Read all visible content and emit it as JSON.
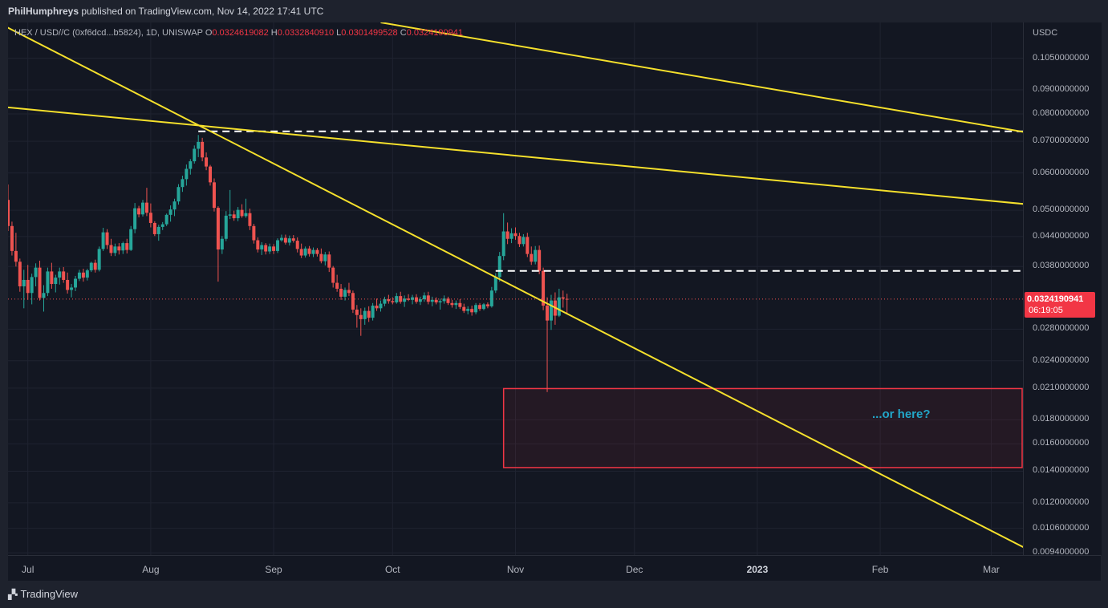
{
  "header": {
    "publisher": "PhilHumphreys",
    "published_text": "published on TradingView.com, Nov 14, 2022 17:41 UTC"
  },
  "legend": {
    "symbol": "HEX / USD//C (0xf6dcd...b5824), 1D, UNISWAP",
    "open_label": "O",
    "open": "0.0324619082",
    "high_label": "H",
    "high": "0.0332840910",
    "low_label": "L",
    "low": "0.0301499528",
    "close_label": "C",
    "close": "0.0324190941"
  },
  "price_axis": {
    "currency": "USDC",
    "ticks": [
      {
        "value": 0.105,
        "label": "0.1050000000"
      },
      {
        "value": 0.09,
        "label": "0.0900000000"
      },
      {
        "value": 0.08,
        "label": "0.0800000000"
      },
      {
        "value": 0.07,
        "label": "0.0700000000"
      },
      {
        "value": 0.06,
        "label": "0.0600000000"
      },
      {
        "value": 0.05,
        "label": "0.0500000000"
      },
      {
        "value": 0.044,
        "label": "0.0440000000"
      },
      {
        "value": 0.038,
        "label": "0.0380000000"
      },
      {
        "value": 0.028,
        "label": "0.0280000000"
      },
      {
        "value": 0.024,
        "label": "0.0240000000"
      },
      {
        "value": 0.021,
        "label": "0.0210000000"
      },
      {
        "value": 0.018,
        "label": "0.0180000000"
      },
      {
        "value": 0.016,
        "label": "0.0160000000"
      },
      {
        "value": 0.014,
        "label": "0.0140000000"
      },
      {
        "value": 0.012,
        "label": "0.0120000000"
      },
      {
        "value": 0.0106,
        "label": "0.0106000000"
      },
      {
        "value": 0.0094,
        "label": "0.0094000000"
      }
    ]
  },
  "time_axis": {
    "ticks": [
      {
        "date": "2022-07-01",
        "label": "Jul",
        "year": false
      },
      {
        "date": "2022-08-01",
        "label": "Aug",
        "year": false
      },
      {
        "date": "2022-09-01",
        "label": "Sep",
        "year": false
      },
      {
        "date": "2022-10-01",
        "label": "Oct",
        "year": false
      },
      {
        "date": "2022-11-01",
        "label": "Nov",
        "year": false
      },
      {
        "date": "2022-12-01",
        "label": "Dec",
        "year": false
      },
      {
        "date": "2023-01-01",
        "label": "2023",
        "year": true
      },
      {
        "date": "2023-02-01",
        "label": "Feb",
        "year": false
      },
      {
        "date": "2023-03-01",
        "label": "Mar",
        "year": false
      }
    ]
  },
  "last_price": {
    "price": "0.0324190941",
    "countdown": "06:19:05"
  },
  "annotation": "...or here?",
  "footer": {
    "brand": "TradingView"
  },
  "colors": {
    "background": "#131722",
    "up": "#26a69a",
    "down": "#ef5350",
    "trendline": "#f5e02c",
    "level": "#ffffff",
    "zone_border": "#f23645",
    "annotation": "#22a6c9"
  },
  "chart_data": {
    "type": "candlestick",
    "scale": "log",
    "x_range": [
      "2022-06-26",
      "2023-03-09"
    ],
    "y_range": [
      0.0093,
      0.125
    ],
    "candles": [
      [
        "2022-06-26",
        0.0526,
        0.0567,
        0.0452,
        0.0463
      ],
      [
        "2022-06-27",
        0.0463,
        0.0473,
        0.0401,
        0.041
      ],
      [
        "2022-06-28",
        0.041,
        0.0448,
        0.038,
        0.0389
      ],
      [
        "2022-06-29",
        0.0389,
        0.0395,
        0.0336,
        0.0345
      ],
      [
        "2022-06-30",
        0.0345,
        0.0374,
        0.031,
        0.0356
      ],
      [
        "2022-07-01",
        0.0356,
        0.0383,
        0.0323,
        0.0334
      ],
      [
        "2022-07-02",
        0.0334,
        0.0367,
        0.0316,
        0.0361
      ],
      [
        "2022-07-03",
        0.0361,
        0.0386,
        0.0345,
        0.0378
      ],
      [
        "2022-07-04",
        0.0378,
        0.0391,
        0.0322,
        0.0326
      ],
      [
        "2022-07-05",
        0.0326,
        0.0347,
        0.0305,
        0.0334
      ],
      [
        "2022-07-06",
        0.0334,
        0.0378,
        0.0329,
        0.0371
      ],
      [
        "2022-07-07",
        0.0371,
        0.0387,
        0.0341,
        0.0349
      ],
      [
        "2022-07-08",
        0.0349,
        0.0365,
        0.0335,
        0.036
      ],
      [
        "2022-07-09",
        0.036,
        0.0378,
        0.0348,
        0.0371
      ],
      [
        "2022-07-10",
        0.0371,
        0.0379,
        0.0351,
        0.0356
      ],
      [
        "2022-07-11",
        0.0356,
        0.0369,
        0.0333,
        0.0339
      ],
      [
        "2022-07-12",
        0.0339,
        0.0349,
        0.0327,
        0.0343
      ],
      [
        "2022-07-13",
        0.0343,
        0.0363,
        0.0337,
        0.0358
      ],
      [
        "2022-07-14",
        0.0358,
        0.0374,
        0.0354,
        0.0369
      ],
      [
        "2022-07-15",
        0.0369,
        0.0376,
        0.0353,
        0.036
      ],
      [
        "2022-07-16",
        0.036,
        0.0376,
        0.0355,
        0.0373
      ],
      [
        "2022-07-17",
        0.0373,
        0.0389,
        0.037,
        0.0387
      ],
      [
        "2022-07-18",
        0.0387,
        0.0393,
        0.0369,
        0.0374
      ],
      [
        "2022-07-19",
        0.0374,
        0.0419,
        0.0371,
        0.0414
      ],
      [
        "2022-07-20",
        0.0414,
        0.0459,
        0.041,
        0.0449
      ],
      [
        "2022-07-21",
        0.0449,
        0.0456,
        0.0414,
        0.0422
      ],
      [
        "2022-07-22",
        0.0422,
        0.0435,
        0.04,
        0.0406
      ],
      [
        "2022-07-23",
        0.0406,
        0.0425,
        0.04,
        0.0419
      ],
      [
        "2022-07-24",
        0.0419,
        0.0426,
        0.0403,
        0.0411
      ],
      [
        "2022-07-25",
        0.0411,
        0.0429,
        0.0404,
        0.0426
      ],
      [
        "2022-07-26",
        0.0426,
        0.0435,
        0.0405,
        0.0412
      ],
      [
        "2022-07-27",
        0.0412,
        0.0463,
        0.041,
        0.0456
      ],
      [
        "2022-07-28",
        0.0456,
        0.0518,
        0.0447,
        0.0505
      ],
      [
        "2022-07-29",
        0.0505,
        0.0511,
        0.0483,
        0.049
      ],
      [
        "2022-07-30",
        0.049,
        0.0526,
        0.0485,
        0.0519
      ],
      [
        "2022-07-31",
        0.0519,
        0.0558,
        0.0486,
        0.0494
      ],
      [
        "2022-08-01",
        0.0494,
        0.0517,
        0.046,
        0.047
      ],
      [
        "2022-08-02",
        0.047,
        0.0474,
        0.0441,
        0.0445
      ],
      [
        "2022-08-03",
        0.0445,
        0.0466,
        0.0431,
        0.0461
      ],
      [
        "2022-08-04",
        0.0461,
        0.0472,
        0.0454,
        0.0467
      ],
      [
        "2022-08-05",
        0.0467,
        0.0492,
        0.0463,
        0.0489
      ],
      [
        "2022-08-06",
        0.0489,
        0.0512,
        0.0473,
        0.0502
      ],
      [
        "2022-08-07",
        0.0502,
        0.0529,
        0.0486,
        0.0522
      ],
      [
        "2022-08-08",
        0.0522,
        0.0568,
        0.0514,
        0.056
      ],
      [
        "2022-08-09",
        0.056,
        0.0592,
        0.0547,
        0.0582
      ],
      [
        "2022-08-10",
        0.0582,
        0.0625,
        0.0564,
        0.0612
      ],
      [
        "2022-08-11",
        0.0612,
        0.0642,
        0.0595,
        0.0635
      ],
      [
        "2022-08-12",
        0.0635,
        0.0686,
        0.0628,
        0.0675
      ],
      [
        "2022-08-13",
        0.0675,
        0.0722,
        0.0648,
        0.0698
      ],
      [
        "2022-08-14",
        0.0698,
        0.0712,
        0.0635,
        0.0647
      ],
      [
        "2022-08-15",
        0.0647,
        0.0663,
        0.0608,
        0.0619
      ],
      [
        "2022-08-16",
        0.0619,
        0.0624,
        0.0564,
        0.0573
      ],
      [
        "2022-08-17",
        0.0573,
        0.0584,
        0.0497,
        0.0506
      ],
      [
        "2022-08-18",
        0.0506,
        0.051,
        0.0353,
        0.0413
      ],
      [
        "2022-08-19",
        0.0413,
        0.0441,
        0.0404,
        0.0435
      ],
      [
        "2022-08-20",
        0.0435,
        0.0498,
        0.043,
        0.0487
      ],
      [
        "2022-08-21",
        0.0487,
        0.0552,
        0.0479,
        0.049
      ],
      [
        "2022-08-22",
        0.049,
        0.0499,
        0.0475,
        0.0481
      ],
      [
        "2022-08-23",
        0.0481,
        0.0508,
        0.0474,
        0.0501
      ],
      [
        "2022-08-24",
        0.0501,
        0.0515,
        0.0482,
        0.0486
      ],
      [
        "2022-08-25",
        0.0486,
        0.0529,
        0.0482,
        0.0493
      ],
      [
        "2022-08-26",
        0.0493,
        0.0504,
        0.0454,
        0.0463
      ],
      [
        "2022-08-27",
        0.0463,
        0.0468,
        0.0425,
        0.0432
      ],
      [
        "2022-08-28",
        0.0432,
        0.0438,
        0.0407,
        0.0413
      ],
      [
        "2022-08-29",
        0.0413,
        0.0428,
        0.0402,
        0.0422
      ],
      [
        "2022-08-30",
        0.0422,
        0.0426,
        0.0403,
        0.0409
      ],
      [
        "2022-08-31",
        0.0409,
        0.0425,
        0.0404,
        0.0419
      ],
      [
        "2022-09-01",
        0.0419,
        0.0424,
        0.0404,
        0.041
      ],
      [
        "2022-09-02",
        0.041,
        0.0436,
        0.0406,
        0.0432
      ],
      [
        "2022-09-03",
        0.0432,
        0.0444,
        0.0429,
        0.0437
      ],
      [
        "2022-09-04",
        0.0437,
        0.0444,
        0.0423,
        0.0427
      ],
      [
        "2022-09-05",
        0.0427,
        0.0442,
        0.0421,
        0.0436
      ],
      [
        "2022-09-06",
        0.0436,
        0.0443,
        0.0427,
        0.0431
      ],
      [
        "2022-09-07",
        0.0431,
        0.0438,
        0.0407,
        0.0414
      ],
      [
        "2022-09-08",
        0.0414,
        0.0425,
        0.0396,
        0.0401
      ],
      [
        "2022-09-09",
        0.0401,
        0.0419,
        0.0397,
        0.0415
      ],
      [
        "2022-09-10",
        0.0415,
        0.042,
        0.0399,
        0.0404
      ],
      [
        "2022-09-11",
        0.0404,
        0.0417,
        0.0398,
        0.0412
      ],
      [
        "2022-09-12",
        0.0412,
        0.0416,
        0.0399,
        0.0404
      ],
      [
        "2022-09-13",
        0.0404,
        0.0415,
        0.0386,
        0.039
      ],
      [
        "2022-09-14",
        0.039,
        0.0408,
        0.0382,
        0.0403
      ],
      [
        "2022-09-15",
        0.0403,
        0.0409,
        0.037,
        0.0378
      ],
      [
        "2022-09-16",
        0.0378,
        0.0381,
        0.0343,
        0.0351
      ],
      [
        "2022-09-17",
        0.0351,
        0.0365,
        0.0336,
        0.0341
      ],
      [
        "2022-09-18",
        0.0341,
        0.0349,
        0.0323,
        0.0328
      ],
      [
        "2022-09-19",
        0.0328,
        0.0343,
        0.0322,
        0.0339
      ],
      [
        "2022-09-20",
        0.0339,
        0.0351,
        0.0329,
        0.0334
      ],
      [
        "2022-09-21",
        0.0334,
        0.0338,
        0.0303,
        0.0308
      ],
      [
        "2022-09-22",
        0.0308,
        0.0315,
        0.0282,
        0.03
      ],
      [
        "2022-09-23",
        0.03,
        0.031,
        0.0271,
        0.0294
      ],
      [
        "2022-09-24",
        0.0294,
        0.0311,
        0.0286,
        0.0306
      ],
      [
        "2022-09-25",
        0.0306,
        0.0313,
        0.029,
        0.0296
      ],
      [
        "2022-09-26",
        0.0296,
        0.0318,
        0.0292,
        0.0314
      ],
      [
        "2022-09-27",
        0.0314,
        0.0325,
        0.0306,
        0.031
      ],
      [
        "2022-09-28",
        0.031,
        0.0322,
        0.0305,
        0.0317
      ],
      [
        "2022-09-29",
        0.0317,
        0.0328,
        0.0313,
        0.0324
      ],
      [
        "2022-09-30",
        0.0324,
        0.0331,
        0.0317,
        0.0321
      ],
      [
        "2022-10-01",
        0.0321,
        0.0327,
        0.0316,
        0.0319
      ],
      [
        "2022-10-02",
        0.0319,
        0.0334,
        0.0317,
        0.0329
      ],
      [
        "2022-10-03",
        0.0329,
        0.0336,
        0.0317,
        0.032
      ],
      [
        "2022-10-04",
        0.032,
        0.033,
        0.0312,
        0.0325
      ],
      [
        "2022-10-05",
        0.0325,
        0.0332,
        0.0321,
        0.0323
      ],
      [
        "2022-10-06",
        0.0323,
        0.0331,
        0.0316,
        0.0327
      ],
      [
        "2022-10-07",
        0.0327,
        0.0332,
        0.0317,
        0.032
      ],
      [
        "2022-10-08",
        0.032,
        0.0328,
        0.0315,
        0.0324
      ],
      [
        "2022-10-09",
        0.0324,
        0.0335,
        0.032,
        0.033
      ],
      [
        "2022-10-10",
        0.033,
        0.0336,
        0.0316,
        0.032
      ],
      [
        "2022-10-11",
        0.032,
        0.0328,
        0.0313,
        0.0323
      ],
      [
        "2022-10-12",
        0.0323,
        0.0327,
        0.0316,
        0.0319
      ],
      [
        "2022-10-13",
        0.0319,
        0.0325,
        0.0308,
        0.0321
      ],
      [
        "2022-10-14",
        0.0321,
        0.033,
        0.0317,
        0.0325
      ],
      [
        "2022-10-15",
        0.0325,
        0.0328,
        0.0315,
        0.0318
      ],
      [
        "2022-10-16",
        0.0318,
        0.0323,
        0.0311,
        0.0315
      ],
      [
        "2022-10-17",
        0.0315,
        0.0322,
        0.0309,
        0.0318
      ],
      [
        "2022-10-18",
        0.0318,
        0.0324,
        0.0309,
        0.0312
      ],
      [
        "2022-10-19",
        0.0312,
        0.0317,
        0.0303,
        0.0306
      ],
      [
        "2022-10-20",
        0.0306,
        0.0313,
        0.0301,
        0.0309
      ],
      [
        "2022-10-21",
        0.0309,
        0.0314,
        0.0299,
        0.0304
      ],
      [
        "2022-10-22",
        0.0304,
        0.0318,
        0.0301,
        0.0315
      ],
      [
        "2022-10-23",
        0.0315,
        0.0318,
        0.0306,
        0.0309
      ],
      [
        "2022-10-24",
        0.0309,
        0.0318,
        0.0307,
        0.0316
      ],
      [
        "2022-10-25",
        0.0316,
        0.0319,
        0.031,
        0.0313
      ],
      [
        "2022-10-26",
        0.0313,
        0.0344,
        0.0311,
        0.0338
      ],
      [
        "2022-10-27",
        0.0338,
        0.0368,
        0.0334,
        0.0361
      ],
      [
        "2022-10-28",
        0.0361,
        0.0408,
        0.0353,
        0.04
      ],
      [
        "2022-10-29",
        0.04,
        0.0493,
        0.0392,
        0.0451
      ],
      [
        "2022-10-30",
        0.0451,
        0.0471,
        0.0424,
        0.0435
      ],
      [
        "2022-10-31",
        0.0435,
        0.0458,
        0.0426,
        0.0447
      ],
      [
        "2022-11-01",
        0.0447,
        0.046,
        0.0433,
        0.0441
      ],
      [
        "2022-11-02",
        0.0441,
        0.0448,
        0.0418,
        0.0424
      ],
      [
        "2022-11-03",
        0.0424,
        0.0445,
        0.0419,
        0.0439
      ],
      [
        "2022-11-04",
        0.0439,
        0.0448,
        0.0398,
        0.0404
      ],
      [
        "2022-11-05",
        0.0404,
        0.0419,
        0.0383,
        0.0389
      ],
      [
        "2022-11-06",
        0.0389,
        0.042,
        0.0384,
        0.0412
      ],
      [
        "2022-11-07",
        0.0412,
        0.0421,
        0.0366,
        0.0372
      ],
      [
        "2022-11-08",
        0.0372,
        0.0378,
        0.0307,
        0.0314
      ],
      [
        "2022-11-09",
        0.0314,
        0.0327,
        0.0206,
        0.0292
      ],
      [
        "2022-11-10",
        0.0292,
        0.0331,
        0.0279,
        0.0322
      ],
      [
        "2022-11-11",
        0.0322,
        0.0335,
        0.0286,
        0.0299
      ],
      [
        "2022-11-12",
        0.0299,
        0.0341,
        0.0297,
        0.0327
      ],
      [
        "2022-11-13",
        0.0327,
        0.0338,
        0.0311,
        0.0325
      ],
      [
        "2022-11-14",
        0.03246,
        0.03328,
        0.03015,
        0.03242
      ]
    ],
    "trendlines": [
      {
        "points": [
          [
            "2022-06-21",
            0.128
          ],
          [
            "2023-03-13",
            0.0093
          ]
        ]
      },
      {
        "points": [
          [
            "2022-06-26",
            0.0826
          ],
          [
            "2023-03-12",
            0.0513
          ]
        ]
      },
      {
        "points": [
          [
            "2022-09-28",
            0.125
          ],
          [
            "2023-03-12",
            0.0726
          ]
        ]
      }
    ],
    "levels": [
      {
        "price": 0.0735,
        "from": "2022-08-13",
        "style": "dashed"
      },
      {
        "price": 0.0372,
        "from": "2022-10-27",
        "style": "dashed"
      }
    ],
    "zones": [
      {
        "from": "2022-10-29",
        "to": "2023-03-12",
        "top": 0.02095,
        "bottom": 0.01425
      }
    ]
  }
}
